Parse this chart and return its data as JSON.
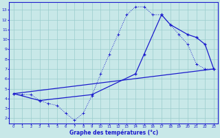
{
  "xlabel": "Graphe des températures (°c)",
  "bg_color": "#c8e8e8",
  "grid_color": "#99cccc",
  "line_color": "#1a1acc",
  "xlim_min": -0.5,
  "xlim_max": 23.5,
  "ylim_min": 1.5,
  "ylim_max": 13.8,
  "xticks": [
    0,
    1,
    2,
    3,
    4,
    5,
    6,
    7,
    8,
    9,
    10,
    11,
    12,
    13,
    14,
    15,
    16,
    17,
    18,
    19,
    20,
    21,
    22,
    23
  ],
  "yticks": [
    2,
    3,
    4,
    5,
    6,
    7,
    8,
    9,
    10,
    11,
    12,
    13
  ],
  "curve1_x": [
    0,
    1,
    2,
    3,
    4,
    5,
    6,
    7,
    8,
    9,
    10,
    11,
    12,
    13,
    14,
    15,
    16,
    17,
    18,
    19,
    20,
    21,
    22,
    23
  ],
  "curve1_y": [
    4.5,
    4.4,
    4.4,
    3.8,
    3.5,
    3.3,
    2.5,
    1.8,
    2.5,
    4.3,
    6.5,
    8.5,
    10.5,
    12.5,
    13.3,
    13.3,
    12.5,
    12.5,
    11.5,
    10.5,
    9.5,
    7.5,
    7.0,
    7.0
  ],
  "curve2_x": [
    0,
    3,
    9,
    14,
    15,
    17,
    18,
    20,
    21,
    22,
    23
  ],
  "curve2_y": [
    4.5,
    3.8,
    4.4,
    6.5,
    8.5,
    12.5,
    11.5,
    10.5,
    10.2,
    9.5,
    7.0
  ],
  "curve3_x": [
    0,
    23
  ],
  "curve3_y": [
    4.5,
    7.0
  ]
}
